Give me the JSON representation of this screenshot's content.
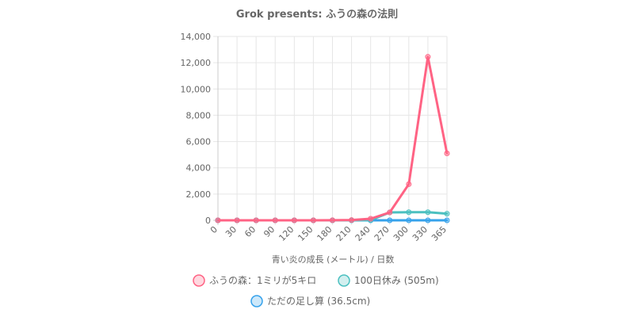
{
  "chart_data": {
    "type": "line",
    "title": "Grok presents: ふうの森の法則",
    "xlabel": "青い炎の成長 (メートル) / 日数",
    "ylabel": "",
    "categories": [
      "0",
      "30",
      "60",
      "90",
      "120",
      "150",
      "180",
      "210",
      "240",
      "270",
      "300",
      "330",
      "365"
    ],
    "y_ticks": [
      "0",
      "2,000",
      "4,000",
      "6,000",
      "8,000",
      "10,000",
      "12,000",
      "14,000"
    ],
    "ylim": [
      0,
      14000
    ],
    "grid": true,
    "legend_position": "bottom",
    "series": [
      {
        "name": "ふうの森：1ミリが5キロ",
        "color": "#ff6384",
        "values": [
          0,
          0,
          0,
          0,
          0,
          0,
          5,
          20,
          120,
          600,
          2750,
          12450,
          5100
        ]
      },
      {
        "name": "100日休み (505m)",
        "color": "#4bc0c0",
        "values": [
          0,
          0,
          0,
          0,
          0,
          0,
          0,
          0,
          20,
          600,
          620,
          620,
          505
        ]
      },
      {
        "name": "ただの足し算 (36.5cm)",
        "color": "#36a2eb",
        "values": [
          0,
          0,
          0,
          0,
          0,
          0,
          0,
          0,
          0,
          0,
          0,
          0,
          0.365
        ]
      }
    ]
  }
}
